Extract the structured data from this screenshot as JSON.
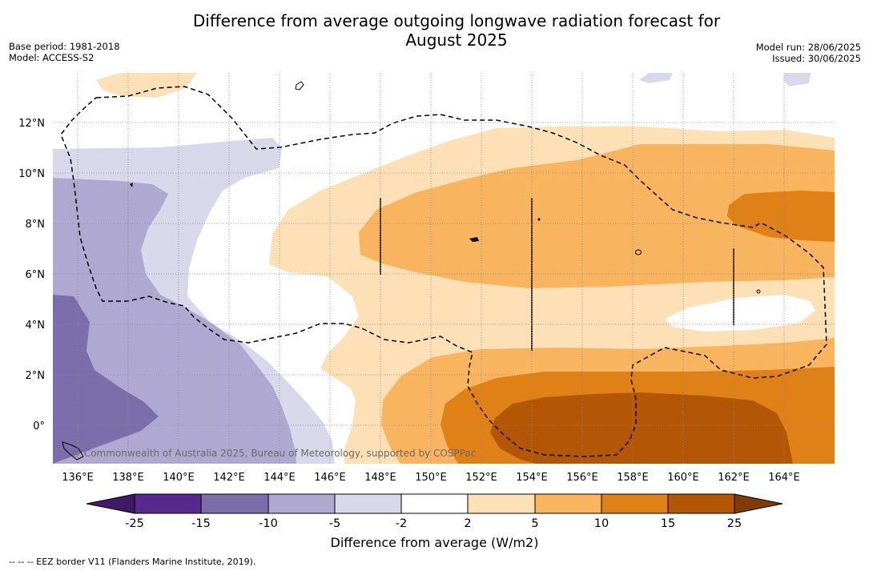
{
  "title_line1": "Difference from average outgoing longwave radiation forecast for",
  "title_line2": "August 2025",
  "meta_left": {
    "base_period": "Base period: 1981-2018",
    "model": "Model: ACCESS-S2"
  },
  "meta_right": {
    "model_run": "Model run: 28/06/2025",
    "issued": "Issued: 30/06/2025"
  },
  "lon_labels": [
    "136°E",
    "138°E",
    "140°E",
    "142°E",
    "144°E",
    "146°E",
    "148°E",
    "150°E",
    "152°E",
    "154°E",
    "156°E",
    "158°E",
    "160°E",
    "162°E",
    "164°E"
  ],
  "lat_labels": [
    "12°N",
    "10°N",
    "8°N",
    "6°N",
    "4°N",
    "2°N",
    "0°"
  ],
  "copyright": "© Commonwealth of Australia 2025, Bureau of Meteorology, supported by COSPPac",
  "colorbar": {
    "label": "Difference from average (W/m2)",
    "ticks": [
      "-25",
      "-15",
      "-10",
      "-5",
      "-2",
      "2",
      "5",
      "10",
      "15",
      "25"
    ],
    "colors": [
      "#3f1a66",
      "#58288c",
      "#7c6dab",
      "#afa9d2",
      "#d8d8ea",
      "#ffffff",
      "#fde0b6",
      "#f9b45f",
      "#e08118",
      "#b35707",
      "#7f3b08"
    ]
  },
  "eez_note": "--  --  -- EEZ border V11 (Flanders Marine Institute, 2019)."
}
